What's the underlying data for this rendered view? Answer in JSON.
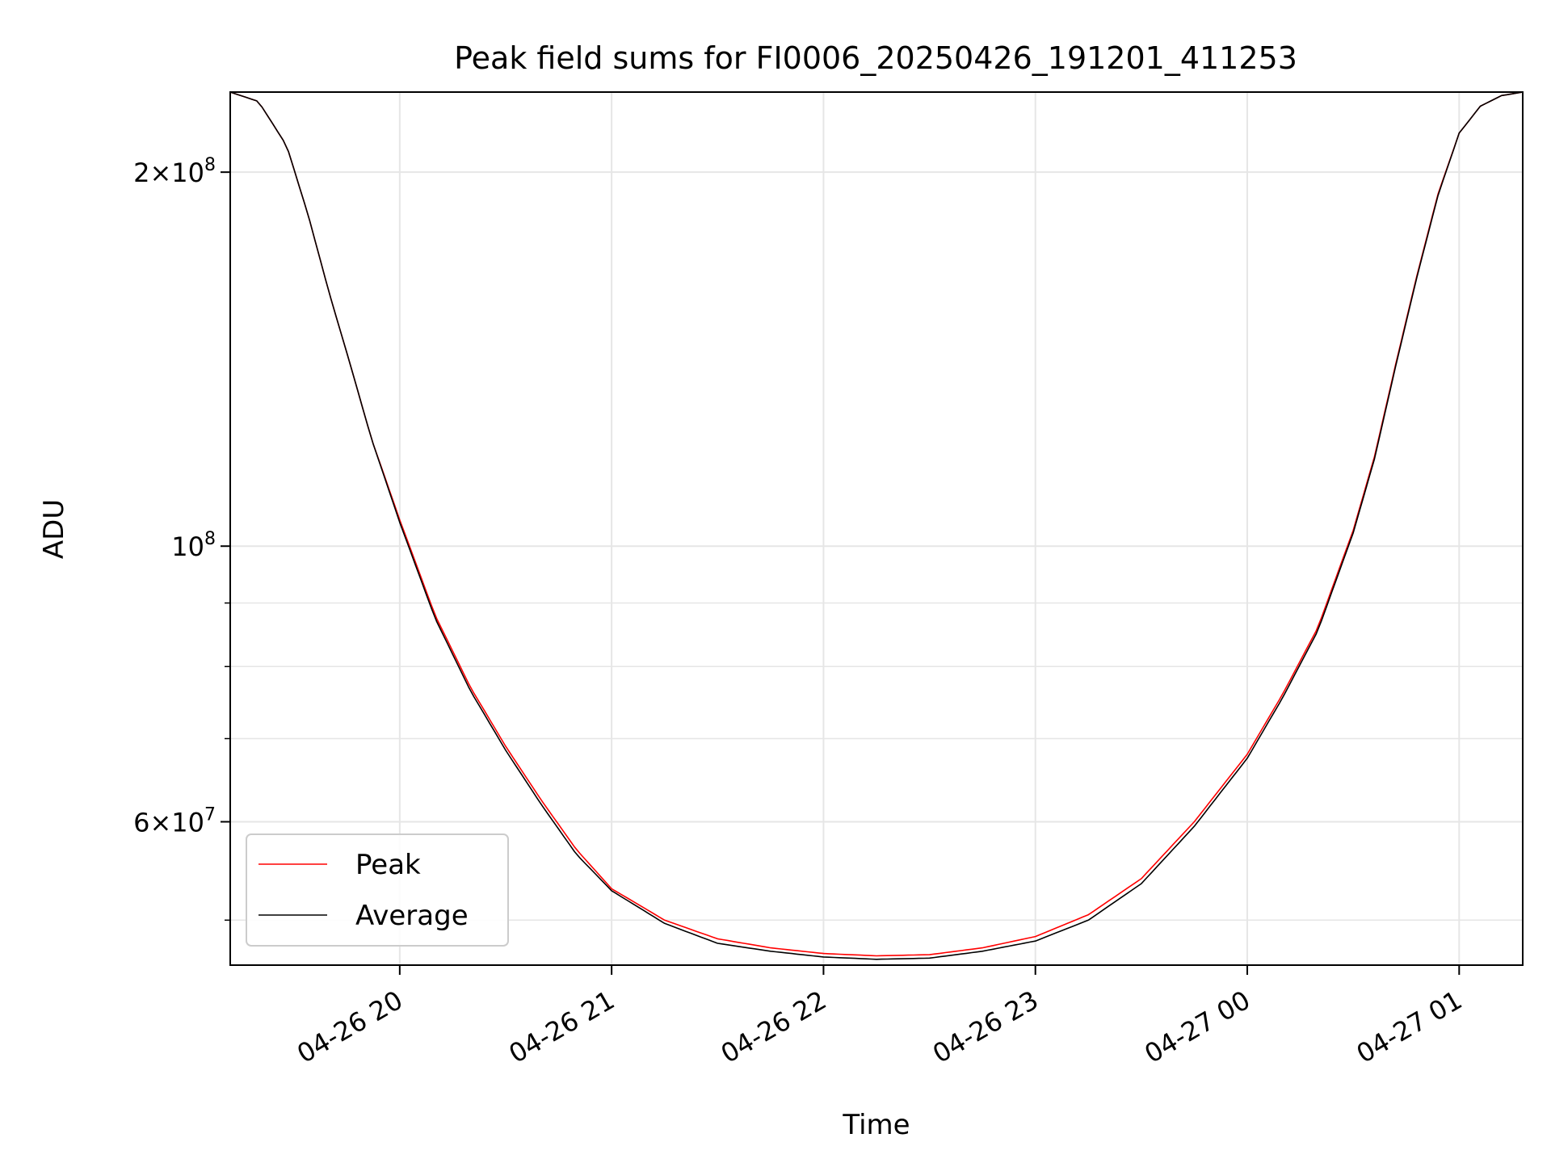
{
  "chart_data": {
    "type": "line",
    "title": "Peak field sums for FI0006_20250426_191201_411253",
    "xlabel": "Time",
    "ylabel": "ADU",
    "x_scale": "time",
    "y_scale": "log",
    "xlim": [
      "04-26 19:12",
      "04-27 01:18"
    ],
    "ylim": [
      46000000,
      232000000
    ],
    "x_ticks": [
      {
        "value": "04-26 20:00",
        "label": "04-26 20"
      },
      {
        "value": "04-26 21:00",
        "label": "04-26 21"
      },
      {
        "value": "04-26 22:00",
        "label": "04-26 22"
      },
      {
        "value": "04-26 23:00",
        "label": "04-26 23"
      },
      {
        "value": "04-27 00:00",
        "label": "04-27 00"
      },
      {
        "value": "04-27 01:00",
        "label": "04-27 01"
      }
    ],
    "y_major_ticks": [
      {
        "value": 200000000,
        "mantissa": "2",
        "exp": "8"
      },
      {
        "value": 100000000,
        "mantissa": "",
        "exp": "8"
      },
      {
        "value": 60000000,
        "mantissa": "6",
        "exp": "7"
      }
    ],
    "y_minor_ticks": [
      50000000,
      70000000,
      80000000,
      90000000
    ],
    "grid": true,
    "legend_position": "lower-left",
    "series": [
      {
        "name": "Peak",
        "color": "#ff0000",
        "x": [
          "04-26 19:12",
          "04-26 19:20",
          "04-26 19:28",
          "04-26 19:34",
          "04-26 19:40",
          "04-26 19:46",
          "04-26 19:52",
          "04-26 20:00",
          "04-26 20:10",
          "04-26 20:20",
          "04-26 20:30",
          "04-26 20:40",
          "04-26 20:50",
          "04-26 21:00",
          "04-26 21:15",
          "04-26 21:30",
          "04-26 21:45",
          "04-26 22:00",
          "04-26 22:15",
          "04-26 22:30",
          "04-26 22:45",
          "04-26 23:00",
          "04-26 23:15",
          "04-26 23:30",
          "04-26 23:45",
          "04-27 00:00",
          "04-27 00:10",
          "04-27 00:20",
          "04-27 00:30",
          "04-27 00:36",
          "04-27 00:42",
          "04-27 00:48",
          "04-27 00:54",
          "04-27 01:00",
          "04-27 01:06",
          "04-27 01:12",
          "04-27 01:18"
        ],
        "y": [
          232000000,
          228000000,
          210000000,
          185000000,
          160000000,
          140000000,
          122000000,
          105000000,
          88000000,
          77000000,
          69000000,
          62500000,
          57000000,
          53000000,
          50000000,
          48300000,
          47500000,
          47000000,
          46800000,
          46900000,
          47500000,
          48500000,
          50500000,
          54000000,
          60000000,
          68000000,
          76000000,
          86000000,
          103000000,
          118000000,
          140000000,
          165000000,
          192000000,
          215000000,
          226000000,
          230500000,
          232000000
        ]
      },
      {
        "name": "Average",
        "color": "#000000",
        "x": [
          "04-26 19:12",
          "04-26 19:20",
          "04-26 19:28",
          "04-26 19:34",
          "04-26 19:40",
          "04-26 19:46",
          "04-26 19:52",
          "04-26 20:00",
          "04-26 20:10",
          "04-26 20:20",
          "04-26 20:30",
          "04-26 20:40",
          "04-26 20:50",
          "04-26 21:00",
          "04-26 21:15",
          "04-26 21:30",
          "04-26 21:45",
          "04-26 22:00",
          "04-26 22:15",
          "04-26 22:30",
          "04-26 22:45",
          "04-26 23:00",
          "04-26 23:15",
          "04-26 23:30",
          "04-26 23:45",
          "04-27 00:00",
          "04-27 00:10",
          "04-27 00:20",
          "04-27 00:30",
          "04-27 00:36",
          "04-27 00:42",
          "04-27 00:48",
          "04-27 00:54",
          "04-27 01:00",
          "04-27 01:06",
          "04-27 01:12",
          "04-27 01:18"
        ],
        "y": [
          232000000,
          228000000,
          210000000,
          185000000,
          160000000,
          140000000,
          122000000,
          104500000,
          87500000,
          76500000,
          68500000,
          62000000,
          56500000,
          52800000,
          49700000,
          47900000,
          47200000,
          46700000,
          46500000,
          46600000,
          47200000,
          48100000,
          50000000,
          53500000,
          59500000,
          67500000,
          75500000,
          85500000,
          102500000,
          117500000,
          139500000,
          164500000,
          191500000,
          215000000,
          226000000,
          230500000,
          232000000
        ]
      }
    ]
  }
}
